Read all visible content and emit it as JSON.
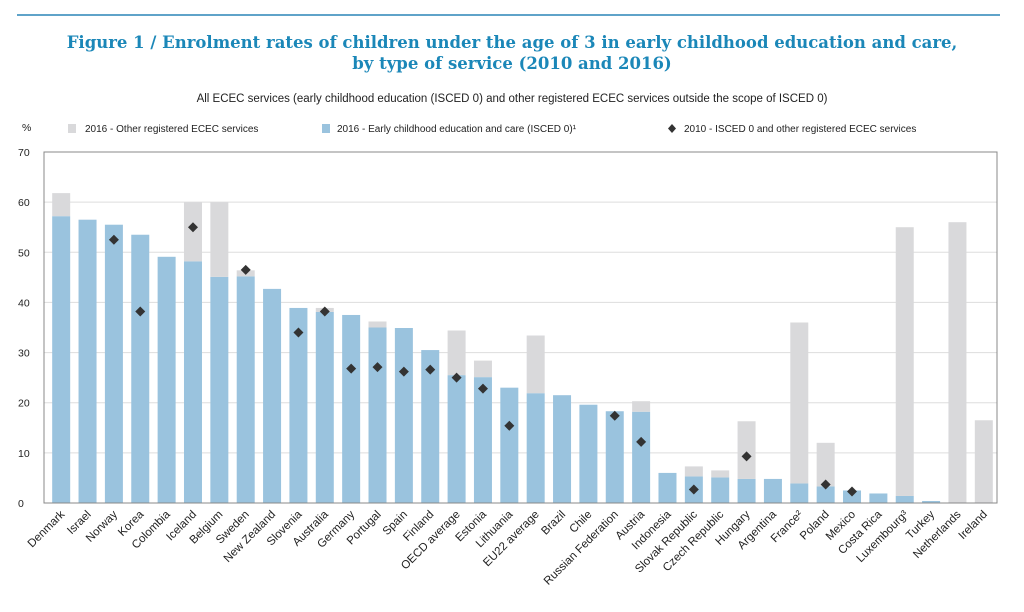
{
  "header": {
    "title_line1": "Figure 1  /  Enrolment rates of children under the age of 3 in early childhood education and care,",
    "title_line2": "by type of service (2010 and 2016)",
    "subtitle": "All ECEC services (early childhood education (ISCED 0) and other registered ECEC services outside the scope of ISCED 0)"
  },
  "colors": {
    "accent": "#1b87b8",
    "isced0": "#9ac3de",
    "other": "#d9d9db",
    "marker": "#333333",
    "grid": "#dddddd"
  },
  "chart_data": {
    "type": "bar",
    "stacked": true,
    "ylabel": "%",
    "ylim": [
      0,
      70
    ],
    "yticks": [
      0,
      10,
      20,
      30,
      40,
      50,
      60,
      70
    ],
    "grid": true,
    "legend_position": "top",
    "categories": [
      "Denmark",
      "Israel",
      "Norway",
      "Korea",
      "Colombia",
      "Iceland",
      "Belgium",
      "Sweden",
      "New Zealand",
      "Slovenia",
      "Australia",
      "Germany",
      "Portugal",
      "Spain",
      "Finland",
      "OECD average",
      "Estonia",
      "Lithuania",
      "EU22 average",
      "Brazil",
      "Chile",
      "Russian Federation",
      "Austria",
      "Indonesia",
      "Slovak Republic",
      "Czech Republic",
      "Hungary",
      "Argentina",
      "France²",
      "Poland",
      "Mexico",
      "Costa Rica",
      "Luxembourg³",
      "Turkey",
      "Netherlands",
      "Ireland"
    ],
    "series": [
      {
        "name": "2016 - Early childhood education and care (ISCED 0)¹",
        "kind": "bar",
        "values": [
          57.2,
          56.5,
          55.5,
          53.5,
          49.1,
          48.2,
          45.1,
          45.2,
          42.7,
          38.9,
          38.1,
          37.5,
          35.0,
          34.9,
          30.5,
          25.5,
          25.1,
          23.0,
          21.9,
          21.5,
          19.6,
          18.3,
          18.2,
          6.0,
          5.3,
          5.1,
          4.8,
          4.8,
          3.9,
          3.3,
          2.5,
          1.9,
          1.4,
          0.4,
          0,
          0
        ]
      },
      {
        "name": "2016 - Other registered ECEC services",
        "kind": "bar",
        "values": [
          4.6,
          0,
          0,
          0,
          0,
          11.8,
          14.9,
          1.2,
          0,
          0,
          0.8,
          0,
          1.2,
          0,
          0,
          8.9,
          3.3,
          0,
          11.5,
          0,
          0,
          0,
          2.1,
          0,
          2.0,
          1.4,
          11.5,
          0,
          32.1,
          8.7,
          0,
          0,
          53.6,
          0,
          56.0,
          16.5
        ]
      },
      {
        "name": "2010 - ISCED 0 and other registered ECEC services",
        "kind": "marker",
        "values": [
          null,
          null,
          52.5,
          38.2,
          null,
          55.0,
          null,
          46.5,
          null,
          34.0,
          38.2,
          26.8,
          27.1,
          26.2,
          26.6,
          25.0,
          22.8,
          15.4,
          null,
          null,
          null,
          17.4,
          12.2,
          null,
          2.7,
          null,
          9.3,
          null,
          null,
          3.7,
          2.3,
          null,
          null,
          null,
          null,
          null
        ]
      }
    ]
  }
}
